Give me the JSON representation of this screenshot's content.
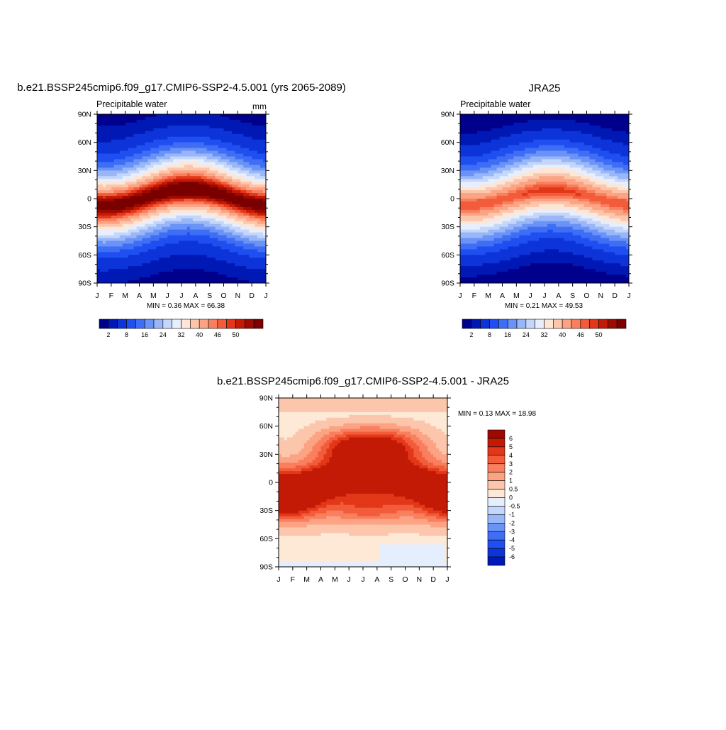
{
  "palettes": {
    "seq": [
      "#00008c",
      "#0018b4",
      "#0c34d8",
      "#1f4ff0",
      "#3f6ef5",
      "#6a93f7",
      "#98b6f8",
      "#c4d7fa",
      "#e8eefc",
      "#fde6d6",
      "#fcc6ac",
      "#fca384",
      "#f97f5e",
      "#f25c3a",
      "#e23718",
      "#c31a06",
      "#9c0a00",
      "#7a0000"
    ],
    "div": [
      "#00008c",
      "#0018b4",
      "#0c34d8",
      "#1f4ff0",
      "#3f6ef5",
      "#6a93f7",
      "#98b6f8",
      "#c4d7fa",
      "#e4eefc",
      "#fde9d6",
      "#fcc6ac",
      "#fca384",
      "#f97f5e",
      "#f25c3a",
      "#e23718",
      "#c31a06",
      "#9c0a00",
      "#7a0000"
    ]
  },
  "chart_data": [
    {
      "id": "model",
      "type": "heatmap",
      "title": "b.e21.BSSP245cmip6.f09_g17.CMIP6-SSP2-4.5.001 (yrs 2065-2089)",
      "left_label": "Precipitable water",
      "right_label": "mm",
      "stats": "MIN =   0.36 MAX =  66.38",
      "x_labels": [
        "J",
        "F",
        "M",
        "A",
        "M",
        "J",
        "J",
        "A",
        "S",
        "O",
        "N",
        "D",
        "J"
      ],
      "y_labels": [
        "90N",
        "60N",
        "30N",
        "0",
        "30S",
        "60S",
        "90S"
      ],
      "ylim": [
        -90,
        90
      ],
      "levels": [
        2,
        4,
        8,
        12,
        16,
        20,
        24,
        28,
        32,
        36,
        40,
        44,
        46,
        48,
        50,
        52,
        54
      ],
      "colorbar_labels": [
        "2",
        "8",
        "16",
        "24",
        "32",
        "40",
        "46",
        "50"
      ],
      "colorbar_label_index": [
        0,
        2,
        4,
        6,
        8,
        10,
        12,
        14
      ],
      "field": {
        "peak": 56,
        "itcz_amp": 8,
        "itcz_shift": 1,
        "width": 18,
        "pole_min": 1
      }
    },
    {
      "id": "obs",
      "type": "heatmap",
      "title": "JRA25",
      "left_label": "Precipitable water",
      "right_label": "",
      "stats": "MIN =   0.21 MAX =  49.53",
      "x_labels": [
        "J",
        "F",
        "M",
        "A",
        "M",
        "J",
        "J",
        "A",
        "S",
        "O",
        "N",
        "D",
        "J"
      ],
      "y_labels": [
        "90N",
        "60N",
        "30N",
        "0",
        "30S",
        "60S",
        "90S"
      ],
      "ylim": [
        -90,
        90
      ],
      "levels": [
        2,
        4,
        8,
        12,
        16,
        20,
        24,
        28,
        32,
        36,
        40,
        44,
        46,
        48,
        50,
        52,
        54
      ],
      "colorbar_labels": [
        "2",
        "8",
        "16",
        "24",
        "32",
        "40",
        "46",
        "50"
      ],
      "colorbar_label_index": [
        0,
        2,
        4,
        6,
        8,
        10,
        12,
        14
      ],
      "field": {
        "peak": 47,
        "itcz_amp": 7,
        "itcz_shift": 1,
        "width": 18,
        "pole_min": 0.5
      }
    },
    {
      "id": "diff",
      "type": "heatmap",
      "title": "b.e21.BSSP245cmip6.f09_g17.CMIP6-SSP2-4.5.001 - JRA25",
      "left_label": "",
      "right_label": "",
      "stats": "MIN =  0.13 MAX =  18.98",
      "x_labels": [
        "J",
        "F",
        "M",
        "A",
        "M",
        "J",
        "J",
        "A",
        "S",
        "O",
        "N",
        "D",
        "J"
      ],
      "y_labels": [
        "90N",
        "60N",
        "30N",
        "0",
        "30S",
        "60S",
        "90S"
      ],
      "ylim": [
        -90,
        90
      ],
      "levels": [
        -6,
        -5,
        -4,
        -3,
        -2,
        -1,
        -0.5,
        0,
        0.5,
        1,
        2,
        3,
        4,
        5,
        6
      ],
      "colorbar_labels": [
        "6",
        "5",
        "4",
        "3",
        "2",
        "1",
        "0.5",
        "0",
        "-0.5",
        "-1",
        "-2",
        "-3",
        "-4",
        "-5",
        "-6"
      ],
      "field": {
        "type": "diff"
      }
    }
  ]
}
